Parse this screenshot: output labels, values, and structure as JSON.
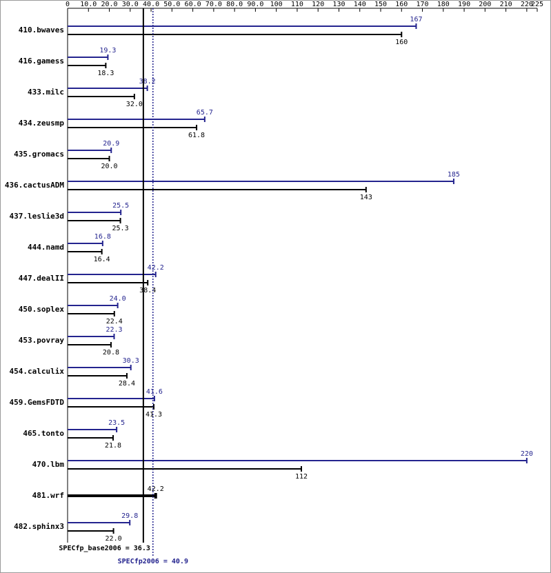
{
  "chart_data": {
    "type": "bar",
    "orientation": "horizontal",
    "categories": [
      "410.bwaves",
      "416.gamess",
      "433.milc",
      "434.zeusmp",
      "435.gromacs",
      "436.cactusADM",
      "437.leslie3d",
      "444.namd",
      "447.dealII",
      "450.soplex",
      "453.povray",
      "454.calculix",
      "459.GemsFDTD",
      "465.tonto",
      "470.lbm",
      "481.wrf",
      "482.sphinx3"
    ],
    "series": [
      {
        "color": "#23238e",
        "values": [
          167,
          19.3,
          38.2,
          65.7,
          20.9,
          185,
          25.5,
          16.8,
          42.2,
          24.0,
          22.3,
          30.3,
          41.6,
          23.5,
          220,
          null,
          29.8
        ],
        "value_labels": [
          "167",
          "19.3",
          "38.2",
          "65.7",
          "20.9",
          "185",
          "25.5",
          "16.8",
          "42.2",
          "24.0",
          "22.3",
          "30.3",
          "41.6",
          "23.5",
          "220",
          null,
          "29.8"
        ]
      },
      {
        "color": "#000000",
        "values": [
          160,
          18.3,
          32.0,
          61.8,
          20.0,
          143,
          25.3,
          16.4,
          38.4,
          22.4,
          20.8,
          28.4,
          41.3,
          21.8,
          112,
          42.2,
          22.0
        ],
        "value_labels": [
          "160",
          "18.3",
          "32.0",
          "61.8",
          "20.0",
          "143",
          "25.3",
          "16.4",
          "38.4",
          "22.4",
          "20.8",
          "28.4",
          "41.3",
          "21.8",
          "112",
          "42.2",
          "22.0"
        ]
      }
    ],
    "reference_lines": [
      {
        "name": "SPECfp_base2006 = 36.3",
        "value": 36.3,
        "color": "#000000",
        "style": "solid"
      },
      {
        "name": "SPECfp2006 = 40.9",
        "value": 40.9,
        "color": "#23238e",
        "style": "dotted"
      }
    ],
    "xlim": [
      0,
      225
    ],
    "xticks": [
      0,
      {
        "value": 10,
        "label": "10.0"
      },
      {
        "value": 20,
        "label": "20.0"
      },
      {
        "value": 30,
        "label": "30.0"
      },
      {
        "value": 40,
        "label": "40.0"
      },
      {
        "value": 50,
        "label": "50.0"
      },
      {
        "value": 60,
        "label": "60.0"
      },
      {
        "value": 70,
        "label": "70.0"
      },
      {
        "value": 80,
        "label": "80.0"
      },
      {
        "value": 90,
        "label": "90.0"
      },
      100,
      110,
      120,
      130,
      140,
      150,
      160,
      170,
      180,
      190,
      200,
      210,
      220,
      225
    ]
  }
}
